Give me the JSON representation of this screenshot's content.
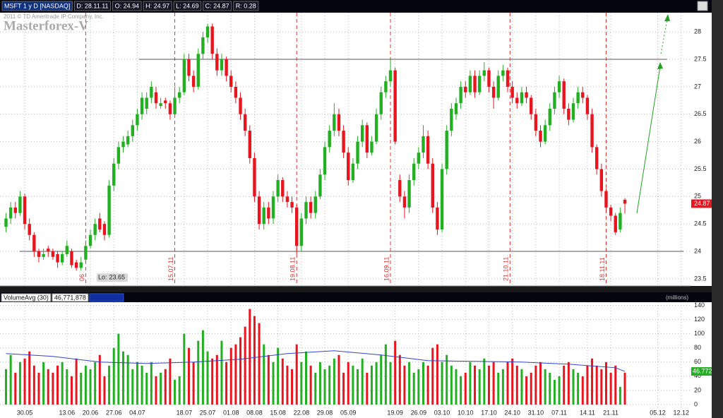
{
  "chart_data": [
    {
      "type": "candlestick",
      "title": "MSFT 1 y D [NASDAQ]",
      "info": [
        "D: 28.11.11",
        "O: 24.94",
        "H: 24.97",
        "L: 24.69",
        "C: 24.87",
        "R: 0.28"
      ],
      "watermark": [
        "2011 © TD Ameritrade IP Company, Inc.",
        "Masterforex-V"
      ],
      "up_color": "#22b022",
      "down_color": "#e8141e",
      "xlim": [
        -1.28,
        146
      ],
      "ylim": [
        23.37,
        28.35
      ],
      "yticks": [
        23.5,
        24,
        24.5,
        25,
        25.5,
        26,
        26.5,
        27,
        27.5,
        28
      ],
      "grid": true,
      "low": {
        "label": "Lo:",
        "value": 23.65
      },
      "hlines": [
        {
          "y": 27.5,
          "x": [
            28.4,
            141
          ]
        },
        {
          "y": 24,
          "x": [
            2.9,
            144.5
          ]
        }
      ],
      "vlines": [
        {
          "x": 17,
          "label": "06"
        },
        {
          "x": 36,
          "label": "15.07.11"
        },
        {
          "x": 62,
          "label": "19.08.11"
        },
        {
          "x": 82,
          "label": "16.09.11"
        },
        {
          "x": 107.5,
          "label": "21.10.11"
        },
        {
          "x": 128,
          "label": "18.11.11"
        }
      ],
      "candles": [
        [
          24.45,
          24.7,
          24.35,
          24.6
        ],
        [
          24.6,
          24.9,
          24.5,
          24.8
        ],
        [
          24.8,
          24.9,
          24.6,
          24.7
        ],
        [
          24.7,
          25.1,
          24.65,
          25.0
        ],
        [
          25.0,
          25.05,
          24.4,
          24.5
        ],
        [
          24.5,
          24.6,
          24.2,
          24.3
        ],
        [
          24.3,
          24.35,
          23.9,
          24.0
        ],
        [
          24.0,
          24.05,
          23.8,
          23.9
        ],
        [
          23.9,
          24.05,
          23.85,
          23.95
        ],
        [
          24.05,
          24.1,
          23.9,
          24.0
        ],
        [
          24.0,
          24.05,
          23.85,
          23.9
        ],
        [
          23.95,
          24.0,
          23.7,
          23.8
        ],
        [
          23.8,
          24.0,
          23.75,
          23.95
        ],
        [
          23.95,
          24.2,
          23.9,
          24.1
        ],
        [
          24.0,
          24.05,
          23.7,
          23.75
        ],
        [
          23.8,
          23.85,
          23.65,
          23.7
        ],
        [
          23.7,
          23.9,
          23.65,
          23.8
        ],
        [
          23.85,
          24.2,
          23.8,
          24.1
        ],
        [
          24.1,
          24.4,
          24.05,
          24.3
        ],
        [
          24.3,
          24.6,
          24.2,
          24.5
        ],
        [
          24.6,
          24.7,
          24.35,
          24.4
        ],
        [
          24.5,
          24.55,
          24.2,
          24.3
        ],
        [
          24.3,
          25.3,
          24.25,
          25.2
        ],
        [
          25.2,
          25.7,
          25.1,
          25.6
        ],
        [
          25.6,
          26.0,
          25.5,
          25.9
        ],
        [
          25.9,
          26.1,
          25.8,
          26.0
        ],
        [
          25.95,
          26.2,
          25.9,
          26.1
        ],
        [
          26.1,
          26.4,
          26.0,
          26.3
        ],
        [
          26.3,
          26.6,
          26.2,
          26.5
        ],
        [
          26.5,
          26.9,
          26.4,
          26.8
        ],
        [
          26.6,
          26.9,
          26.5,
          26.8
        ],
        [
          26.8,
          27.1,
          26.7,
          27.0
        ],
        [
          26.9,
          27.0,
          26.6,
          26.7
        ],
        [
          26.65,
          26.8,
          26.6,
          26.7
        ],
        [
          26.75,
          26.8,
          26.6,
          26.7
        ],
        [
          26.7,
          26.75,
          26.4,
          26.5
        ],
        [
          26.5,
          27.0,
          26.45,
          26.8
        ],
        [
          26.8,
          27.0,
          26.7,
          26.9
        ],
        [
          26.9,
          27.6,
          26.85,
          27.5
        ],
        [
          27.5,
          27.6,
          27.1,
          27.2
        ],
        [
          27.2,
          27.3,
          26.9,
          27.0
        ],
        [
          27.0,
          27.7,
          26.95,
          27.6
        ],
        [
          27.6,
          28.0,
          27.5,
          27.9
        ],
        [
          27.9,
          28.15,
          27.8,
          28.1
        ],
        [
          28.1,
          28.15,
          27.5,
          27.6
        ],
        [
          27.6,
          27.7,
          27.2,
          27.3
        ],
        [
          27.3,
          27.6,
          27.2,
          27.5
        ],
        [
          27.5,
          27.55,
          27.1,
          27.2
        ],
        [
          27.2,
          27.3,
          26.9,
          27.0
        ],
        [
          27.0,
          27.1,
          26.7,
          26.8
        ],
        [
          26.8,
          26.9,
          26.4,
          26.5
        ],
        [
          26.5,
          26.6,
          26.1,
          26.2
        ],
        [
          26.2,
          26.3,
          25.6,
          25.7
        ],
        [
          25.7,
          25.8,
          24.9,
          25.0
        ],
        [
          25.0,
          25.1,
          24.4,
          24.5
        ],
        [
          24.5,
          24.9,
          24.4,
          24.8
        ],
        [
          24.8,
          24.9,
          24.5,
          24.6
        ],
        [
          24.6,
          25.1,
          24.5,
          25.0
        ],
        [
          25.0,
          25.4,
          24.9,
          25.3
        ],
        [
          25.3,
          25.35,
          24.9,
          25.0
        ],
        [
          25.0,
          25.1,
          24.8,
          24.9
        ],
        [
          24.9,
          25.0,
          24.7,
          24.8
        ],
        [
          24.8,
          24.85,
          23.95,
          24.1
        ],
        [
          24.1,
          24.7,
          24.0,
          24.6
        ],
        [
          24.6,
          25.0,
          24.5,
          24.9
        ],
        [
          24.9,
          25.0,
          24.6,
          24.7
        ],
        [
          24.7,
          25.1,
          24.6,
          25.0
        ],
        [
          25.0,
          25.5,
          24.95,
          25.4
        ],
        [
          25.4,
          26.0,
          25.3,
          25.9
        ],
        [
          25.9,
          26.3,
          25.8,
          26.2
        ],
        [
          26.2,
          26.7,
          26.1,
          26.5
        ],
        [
          26.5,
          26.6,
          26.1,
          26.2
        ],
        [
          26.2,
          26.3,
          25.7,
          25.8
        ],
        [
          25.8,
          25.9,
          25.2,
          25.3
        ],
        [
          25.3,
          25.7,
          25.25,
          25.6
        ],
        [
          25.6,
          26.1,
          25.5,
          26.0
        ],
        [
          26.0,
          26.4,
          25.9,
          26.3
        ],
        [
          26.3,
          26.35,
          25.7,
          25.8
        ],
        [
          25.8,
          26.1,
          25.75,
          26.0
        ],
        [
          26.0,
          26.6,
          25.95,
          26.5
        ],
        [
          26.5,
          27.0,
          26.4,
          26.9
        ],
        [
          26.9,
          27.2,
          26.8,
          27.1
        ],
        [
          27.1,
          27.5,
          27.0,
          27.3
        ],
        [
          27.3,
          27.35,
          25.95,
          26.0
        ],
        [
          25.3,
          25.4,
          24.9,
          25.0
        ],
        [
          25.0,
          25.1,
          24.6,
          24.8
        ],
        [
          24.8,
          25.4,
          24.7,
          25.3
        ],
        [
          25.3,
          25.7,
          25.2,
          25.6
        ],
        [
          25.6,
          25.9,
          25.5,
          25.8
        ],
        [
          25.8,
          26.3,
          25.7,
          26.1
        ],
        [
          26.1,
          26.2,
          25.5,
          25.6
        ],
        [
          25.6,
          25.7,
          24.7,
          24.8
        ],
        [
          24.8,
          24.9,
          24.3,
          24.4
        ],
        [
          24.4,
          25.6,
          24.35,
          25.5
        ],
        [
          25.5,
          26.3,
          25.4,
          26.2
        ],
        [
          26.2,
          26.7,
          26.1,
          26.6
        ],
        [
          26.5,
          26.8,
          26.4,
          26.7
        ],
        [
          26.7,
          27.1,
          26.6,
          27.0
        ],
        [
          27.0,
          27.1,
          26.8,
          26.9
        ],
        [
          26.9,
          27.3,
          26.85,
          27.2
        ],
        [
          27.2,
          27.3,
          26.8,
          26.9
        ],
        [
          26.9,
          27.3,
          26.85,
          27.2
        ],
        [
          27.2,
          27.45,
          27.1,
          27.3
        ],
        [
          27.3,
          27.35,
          26.9,
          27.0
        ],
        [
          27.0,
          27.1,
          26.6,
          26.8
        ],
        [
          26.8,
          27.3,
          26.75,
          27.2
        ],
        [
          27.2,
          27.4,
          27.1,
          27.3
        ],
        [
          27.3,
          27.35,
          26.9,
          27.0
        ],
        [
          27.0,
          27.1,
          26.7,
          26.8
        ],
        [
          26.8,
          26.9,
          26.6,
          26.7
        ],
        [
          26.7,
          27.0,
          26.65,
          26.9
        ],
        [
          26.9,
          27.0,
          26.7,
          26.8
        ],
        [
          26.8,
          26.85,
          26.4,
          26.5
        ],
        [
          26.5,
          26.6,
          26.1,
          26.2
        ],
        [
          26.2,
          26.3,
          25.9,
          26.0
        ],
        [
          26.0,
          26.4,
          25.95,
          26.3
        ],
        [
          26.3,
          26.7,
          26.2,
          26.6
        ],
        [
          26.6,
          27.0,
          26.5,
          26.9
        ],
        [
          26.9,
          27.2,
          26.8,
          27.1
        ],
        [
          27.1,
          27.15,
          26.5,
          26.6
        ],
        [
          26.6,
          26.7,
          26.3,
          26.4
        ],
        [
          26.4,
          26.8,
          26.35,
          26.7
        ],
        [
          26.7,
          27.0,
          26.6,
          26.9
        ],
        [
          26.9,
          27.0,
          26.7,
          26.8
        ],
        [
          26.8,
          26.85,
          26.4,
          26.5
        ],
        [
          26.5,
          26.6,
          25.8,
          25.9
        ],
        [
          25.9,
          25.95,
          25.4,
          25.5
        ],
        [
          25.5,
          25.6,
          25.0,
          25.1
        ],
        [
          25.1,
          25.15,
          24.7,
          24.8
        ],
        [
          24.8,
          24.85,
          24.55,
          24.65
        ],
        [
          24.65,
          24.7,
          24.3,
          24.35
        ],
        [
          24.4,
          24.8,
          24.35,
          24.7
        ],
        [
          24.94,
          24.97,
          24.69,
          24.87
        ]
      ]
    },
    {
      "type": "volume",
      "unit_label": "(millions)",
      "legend_value": "46,771,878",
      "xlim": [
        -1.28,
        146
      ],
      "ylim": [
        -5,
        144.5
      ],
      "yticks": [
        0,
        20,
        40,
        60,
        80,
        100,
        120,
        140
      ],
      "grid": true,
      "xticks": [
        {
          "value": 4,
          "label": "30.05"
        },
        {
          "value": 13,
          "label": "13.06"
        },
        {
          "value": 18,
          "label": "20.06"
        },
        {
          "value": 23,
          "label": "27.06"
        },
        {
          "value": 28,
          "label": "04.07"
        },
        {
          "value": 38,
          "label": "18.07"
        },
        {
          "value": 43,
          "label": "25.07"
        },
        {
          "value": 48,
          "label": "01.08"
        },
        {
          "value": 53,
          "label": "08.08"
        },
        {
          "value": 58,
          "label": "15.08"
        },
        {
          "value": 63,
          "label": "22.08"
        },
        {
          "value": 68,
          "label": "29.08"
        },
        {
          "value": 73,
          "label": "05.09"
        },
        {
          "value": 83,
          "label": "19.09"
        },
        {
          "value": 88,
          "label": "26.09"
        },
        {
          "value": 93,
          "label": "03.10"
        },
        {
          "value": 98,
          "label": "10.10"
        },
        {
          "value": 103,
          "label": "17.10"
        },
        {
          "value": 108,
          "label": "24.10"
        },
        {
          "value": 113,
          "label": "31.10"
        },
        {
          "value": 118,
          "label": "07.11"
        },
        {
          "value": 124,
          "label": "14.11"
        },
        {
          "value": 129,
          "label": "21.11"
        },
        {
          "value": 139,
          "label": "05.12"
        },
        {
          "value": 144,
          "label": "12.12"
        }
      ],
      "values": [
        50,
        70,
        45,
        60,
        65,
        75,
        55,
        45,
        60,
        50,
        45,
        55,
        60,
        50,
        40,
        65,
        45,
        55,
        50,
        60,
        70,
        40,
        55,
        80,
        100,
        75,
        70,
        50,
        60,
        55,
        45,
        60,
        40,
        45,
        50,
        65,
        35,
        40,
        100,
        80,
        60,
        90,
        105,
        75,
        65,
        70,
        90,
        60,
        80,
        85,
        95,
        110,
        135,
        125,
        115,
        85,
        70,
        60,
        80,
        65,
        55,
        50,
        85,
        60,
        75,
        55,
        45,
        60,
        50,
        55,
        65,
        70,
        45,
        60,
        55,
        50,
        65,
        45,
        55,
        60,
        70,
        85,
        60,
        90,
        70,
        55,
        60,
        45,
        50,
        60,
        55,
        80,
        85,
        60,
        70,
        55,
        50,
        40,
        45,
        60,
        55,
        50,
        65,
        55,
        60,
        45,
        50,
        60,
        65,
        55,
        50,
        40,
        45,
        55,
        60,
        50,
        45,
        35,
        40,
        55,
        60,
        50,
        45,
        40,
        55,
        65,
        55,
        50,
        60,
        45,
        55,
        25,
        45
      ],
      "series": [
        {
          "name": "VolumeAvg (30)",
          "color": "#3344cc",
          "x": [
            0,
            10,
            20,
            30,
            40,
            50,
            60,
            70,
            80,
            90,
            100,
            110,
            120,
            130,
            132
          ],
          "values": [
            72,
            68,
            60,
            58,
            60,
            64,
            72,
            76,
            70,
            62,
            61,
            60,
            57,
            52,
            46.772
          ]
        }
      ]
    }
  ]
}
